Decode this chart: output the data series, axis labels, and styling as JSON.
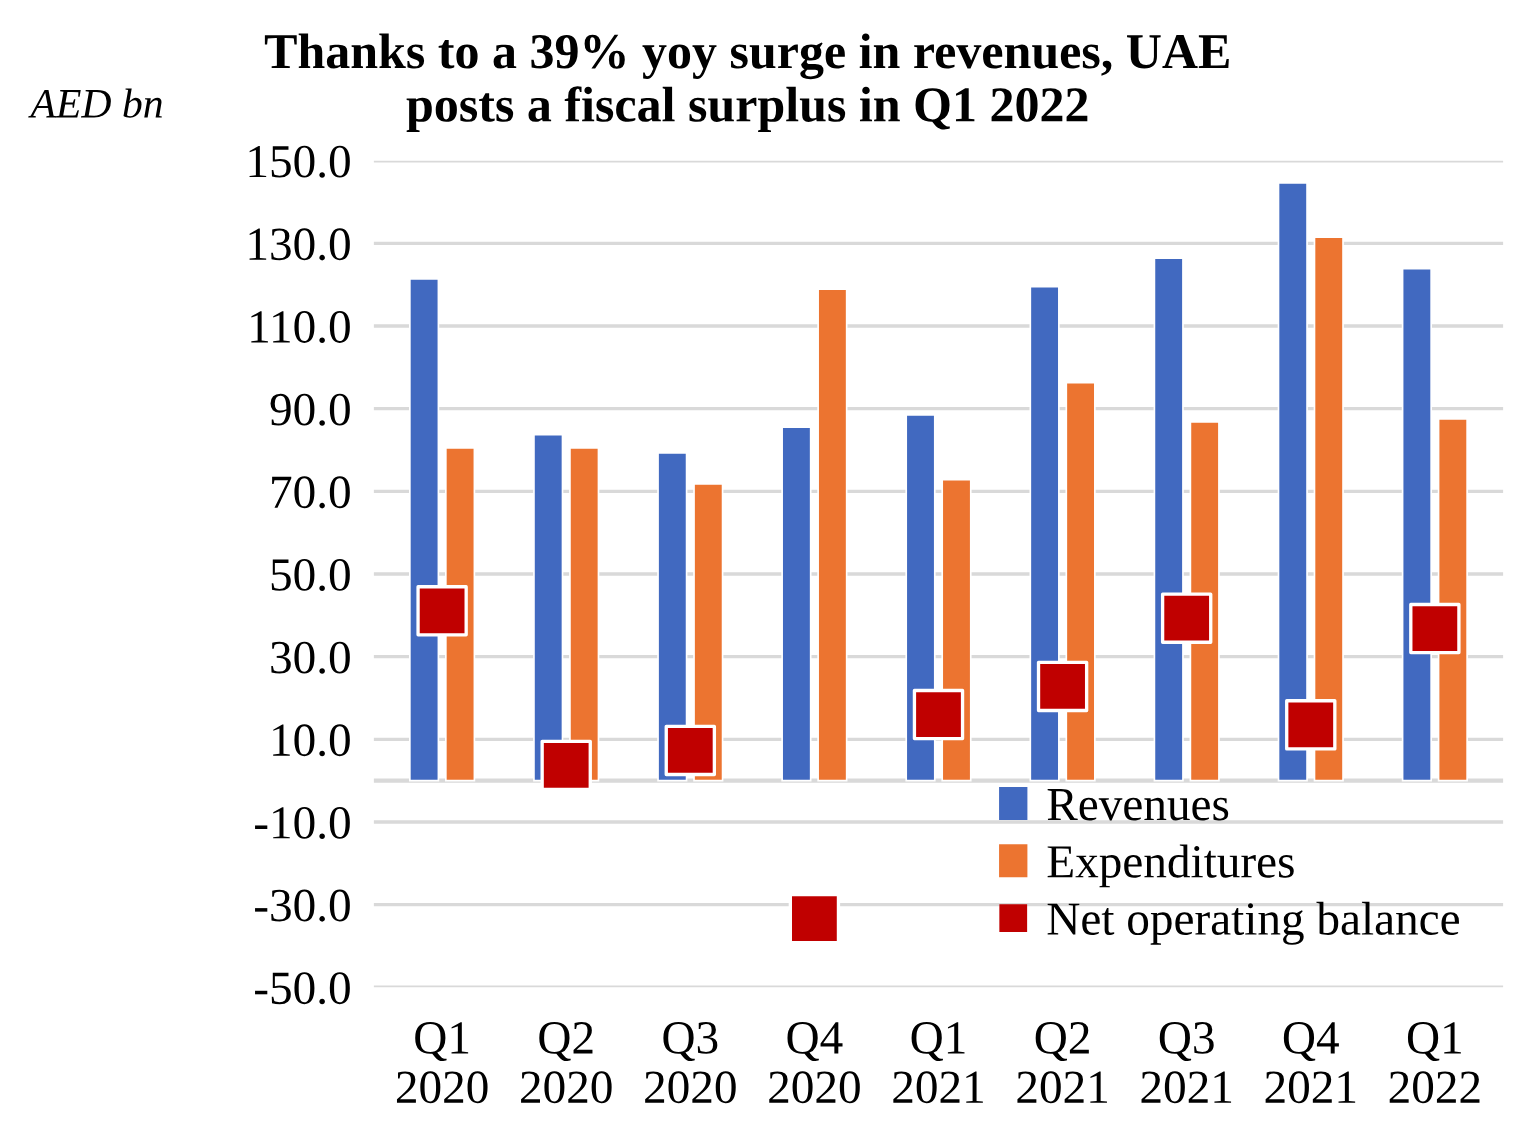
{
  "chart_data": {
    "type": "bar",
    "title": "Thanks to a 39% yoy surge in revenues, UAE\nposts a fiscal surplus in Q1 2022",
    "ylabel": "AED bn",
    "categories": [
      "Q1\n2020",
      "Q2\n2020",
      "Q3\n2020",
      "Q4\n2020",
      "Q1\n2021",
      "Q2\n2021",
      "Q3\n2021",
      "Q4\n2021",
      "Q1\n2022"
    ],
    "series": [
      {
        "name": "Revenues",
        "color": "#4169c0",
        "values": [
          121.4,
          83.7,
          79.3,
          85.5,
          88.5,
          119.5,
          126.4,
          144.6,
          123.9
        ]
      },
      {
        "name": "Expenditures",
        "color": "#ec7430",
        "values": [
          80.5,
          80.5,
          71.8,
          118.9,
          72.8,
          96.3,
          86.8,
          131.5,
          87.5
        ]
      },
      {
        "name": "Net operating balance",
        "type": "scatter",
        "color": "#c00000",
        "marker": "square",
        "values": [
          41.1,
          3.7,
          7.3,
          -33.4,
          16.0,
          22.8,
          39.3,
          13.5,
          36.8
        ]
      }
    ],
    "ylim": [
      -50,
      150
    ],
    "yticks": [
      {
        "value": 150,
        "label": "150.0"
      },
      {
        "value": 130,
        "label": "130.0"
      },
      {
        "value": 110,
        "label": "110.0"
      },
      {
        "value": 90,
        "label": "90.0"
      },
      {
        "value": 70,
        "label": "70.0"
      },
      {
        "value": 50,
        "label": "50.0"
      },
      {
        "value": 30,
        "label": "30.0"
      },
      {
        "value": 10,
        "label": "10.0"
      },
      {
        "value": -10,
        "label": "-10.0"
      },
      {
        "value": -30,
        "label": "-30.0"
      },
      {
        "value": -50,
        "label": "-50.0"
      }
    ],
    "grid": "y",
    "legend": "bottom right"
  }
}
